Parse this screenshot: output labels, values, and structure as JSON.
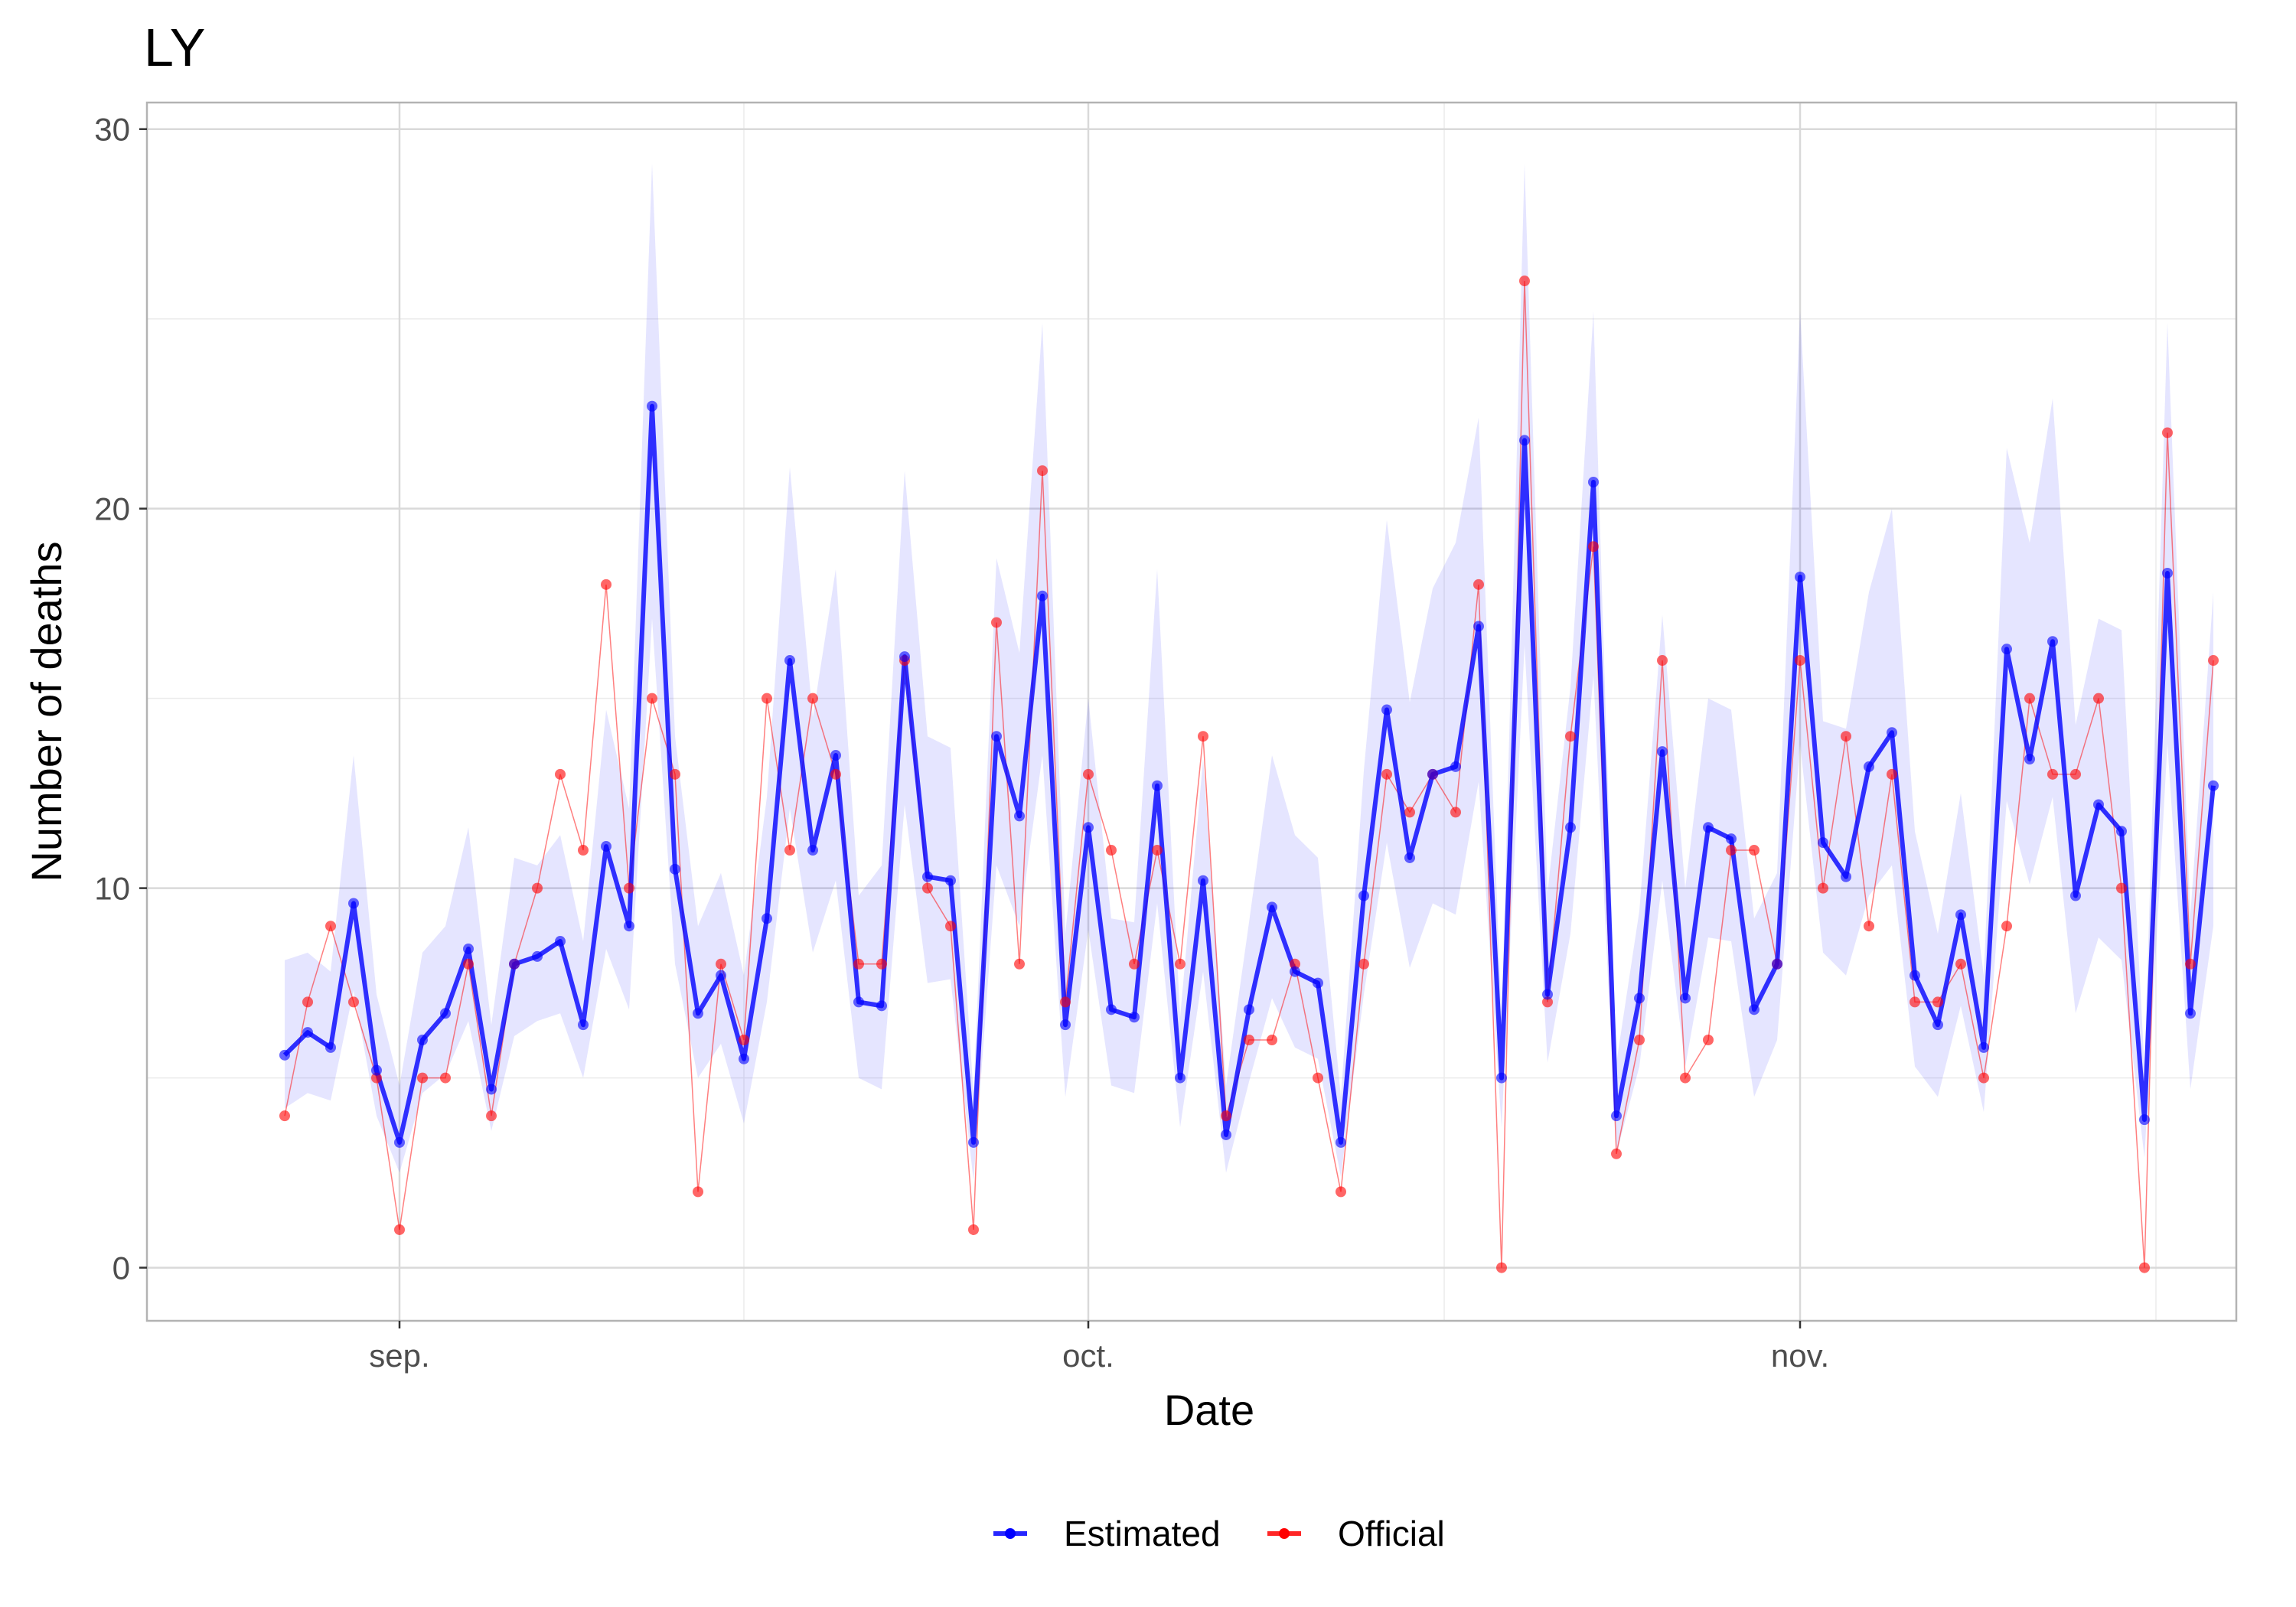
{
  "chart_data": {
    "type": "line",
    "title": "LY",
    "xlabel": "Date",
    "ylabel": "Number of deaths",
    "x_ticks": [
      "sep.",
      "oct.",
      "nov."
    ],
    "x_tick_dates": [
      "2020-09-01",
      "2020-10-01",
      "2020-11-01"
    ],
    "y_ticks": [
      0,
      10,
      20,
      30
    ],
    "ylim": [
      -1.4,
      30.7
    ],
    "xlim": [
      "2020-08-21",
      "2020-11-20"
    ],
    "grid": true,
    "legend_position": "bottom",
    "x": [
      "2020-08-27",
      "2020-08-28",
      "2020-08-29",
      "2020-08-30",
      "2020-08-31",
      "2020-09-01",
      "2020-09-02",
      "2020-09-03",
      "2020-09-04",
      "2020-09-05",
      "2020-09-06",
      "2020-09-07",
      "2020-09-08",
      "2020-09-09",
      "2020-09-10",
      "2020-09-11",
      "2020-09-12",
      "2020-09-13",
      "2020-09-14",
      "2020-09-15",
      "2020-09-16",
      "2020-09-17",
      "2020-09-18",
      "2020-09-19",
      "2020-09-20",
      "2020-09-21",
      "2020-09-22",
      "2020-09-23",
      "2020-09-24",
      "2020-09-25",
      "2020-09-26",
      "2020-09-27",
      "2020-09-28",
      "2020-09-29",
      "2020-09-30",
      "2020-10-01",
      "2020-10-02",
      "2020-10-03",
      "2020-10-04",
      "2020-10-05",
      "2020-10-06",
      "2020-10-07",
      "2020-10-08",
      "2020-10-09",
      "2020-10-10",
      "2020-10-11",
      "2020-10-12",
      "2020-10-13",
      "2020-10-14",
      "2020-10-15",
      "2020-10-16",
      "2020-10-17",
      "2020-10-18",
      "2020-10-19",
      "2020-10-20",
      "2020-10-21",
      "2020-10-22",
      "2020-10-23",
      "2020-10-24",
      "2020-10-25",
      "2020-10-26",
      "2020-10-27",
      "2020-10-28",
      "2020-10-29",
      "2020-10-30",
      "2020-10-31",
      "2020-11-01",
      "2020-11-02",
      "2020-11-03",
      "2020-11-04",
      "2020-11-05",
      "2020-11-06",
      "2020-11-07",
      "2020-11-08",
      "2020-11-09",
      "2020-11-10",
      "2020-11-11",
      "2020-11-12",
      "2020-11-13",
      "2020-11-14",
      "2020-11-15",
      "2020-11-16",
      "2020-11-17",
      "2020-11-18",
      "2020-11-19"
    ],
    "series": [
      {
        "name": "Estimated",
        "color": "#0000ff",
        "values": [
          5.6,
          6.2,
          5.8,
          9.6,
          5.2,
          3.3,
          6.0,
          6.7,
          8.4,
          4.7,
          8.0,
          8.2,
          8.6,
          6.4,
          11.1,
          9.0,
          22.7,
          10.5,
          6.7,
          7.7,
          5.5,
          9.2,
          16.0,
          11.0,
          13.5,
          7.0,
          6.9,
          16.1,
          10.3,
          10.2,
          3.3,
          14.0,
          11.9,
          17.7,
          6.4,
          11.6,
          6.8,
          6.6,
          12.7,
          5.0,
          10.2,
          3.5,
          6.8,
          9.5,
          7.8,
          7.5,
          3.3,
          9.8,
          14.7,
          10.8,
          13.0,
          13.2,
          16.9,
          5.0,
          21.8,
          7.2,
          11.6,
          20.7,
          4.0,
          7.1,
          13.6,
          7.1,
          11.6,
          11.3,
          6.8,
          8.0,
          18.2,
          11.2,
          10.3,
          13.2,
          14.1,
          7.7,
          6.4,
          9.3,
          5.8,
          16.3,
          13.4,
          16.5,
          9.8,
          12.2,
          11.5,
          3.9,
          18.3,
          6.7,
          12.7
        ],
        "lower": [
          4.2,
          4.6,
          4.4,
          7.3,
          4.0,
          2.5,
          4.6,
          5.1,
          6.5,
          3.6,
          6.1,
          6.5,
          6.7,
          5.0,
          8.4,
          6.8,
          17.1,
          8.0,
          5.0,
          5.9,
          3.8,
          7.0,
          12.1,
          8.3,
          10.2,
          5.0,
          4.7,
          12.2,
          7.5,
          7.6,
          2.3,
          10.6,
          9.0,
          13.5,
          4.5,
          8.9,
          4.8,
          4.6,
          9.6,
          3.7,
          7.8,
          2.5,
          4.9,
          7.1,
          5.8,
          5.5,
          2.4,
          7.2,
          11.2,
          7.9,
          9.6,
          9.3,
          12.8,
          3.7,
          16.4,
          5.4,
          8.8,
          15.6,
          3.0,
          5.3,
          10.2,
          5.3,
          8.7,
          8.6,
          4.5,
          6.0,
          13.8,
          8.3,
          7.7,
          9.8,
          10.6,
          5.3,
          4.5,
          6.9,
          4.1,
          12.3,
          10.1,
          12.4,
          6.7,
          8.7,
          8.1,
          2.9,
          13.8,
          4.7,
          9.0
        ],
        "upper": [
          8.1,
          8.3,
          7.8,
          13.5,
          7.2,
          4.8,
          8.3,
          9.0,
          11.6,
          6.4,
          10.8,
          10.6,
          11.4,
          8.6,
          14.7,
          12.1,
          29.1,
          14.0,
          9.0,
          10.4,
          7.7,
          12.4,
          21.1,
          14.5,
          18.4,
          9.8,
          10.6,
          21.0,
          14.0,
          13.7,
          4.6,
          18.7,
          16.2,
          24.9,
          8.8,
          15.0,
          9.2,
          9.1,
          18.4,
          6.6,
          13.4,
          4.8,
          9.1,
          13.5,
          11.4,
          10.8,
          4.5,
          13.1,
          19.7,
          14.9,
          17.9,
          19.1,
          22.4,
          6.5,
          29.1,
          9.9,
          15.3,
          25.2,
          5.4,
          9.4,
          17.2,
          10.0,
          15.0,
          14.7,
          9.2,
          10.4,
          25.2,
          14.4,
          14.2,
          17.8,
          20.0,
          11.5,
          8.8,
          12.5,
          7.7,
          21.6,
          19.1,
          22.9,
          14.3,
          17.1,
          16.8,
          5.3,
          24.9,
          9.3,
          17.8
        ]
      },
      {
        "name": "Official",
        "color": "#ff0000",
        "values": [
          4,
          7,
          9,
          7,
          5,
          1,
          5,
          5,
          8,
          4,
          8,
          10,
          13,
          11,
          18,
          10,
          15,
          13,
          2,
          8,
          6,
          15,
          11,
          15,
          13,
          8,
          8,
          16,
          10,
          9,
          1,
          17,
          8,
          21,
          7,
          13,
          11,
          8,
          11,
          8,
          14,
          4,
          6,
          6,
          8,
          5,
          2,
          8,
          13,
          12,
          13,
          12,
          18,
          0,
          26,
          7,
          14,
          19,
          3,
          6,
          16,
          5,
          6,
          11,
          11,
          8,
          16,
          10,
          14,
          9,
          13,
          7,
          7,
          8,
          5,
          9,
          15,
          13,
          13,
          15,
          10,
          0,
          22,
          8,
          16
        ]
      }
    ]
  },
  "legend": {
    "items": [
      {
        "label": "Estimated",
        "color": "#0000ff"
      },
      {
        "label": "Official",
        "color": "#ff0000"
      }
    ]
  }
}
